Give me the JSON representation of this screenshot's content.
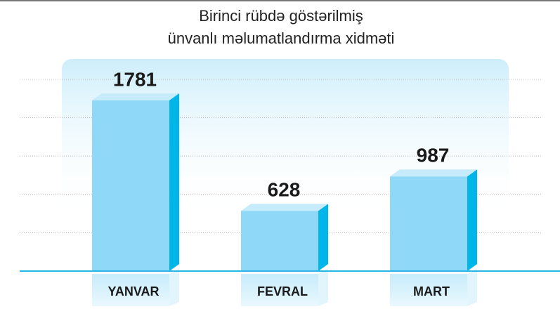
{
  "chart_data": {
    "type": "bar3d",
    "title": [
      "Birinci rübdə göstərilmiş",
      "ünvanlı məlumatlandırma xidməti"
    ],
    "categories": [
      "YANVAR",
      "FEVRAL",
      "MART"
    ],
    "values": [
      1781,
      628,
      987
    ],
    "color": "#8fd8f7",
    "ylim": [
      0,
      2000
    ],
    "yticks": [
      0,
      400,
      800,
      1200,
      1600,
      2000
    ],
    "grid": true
  }
}
